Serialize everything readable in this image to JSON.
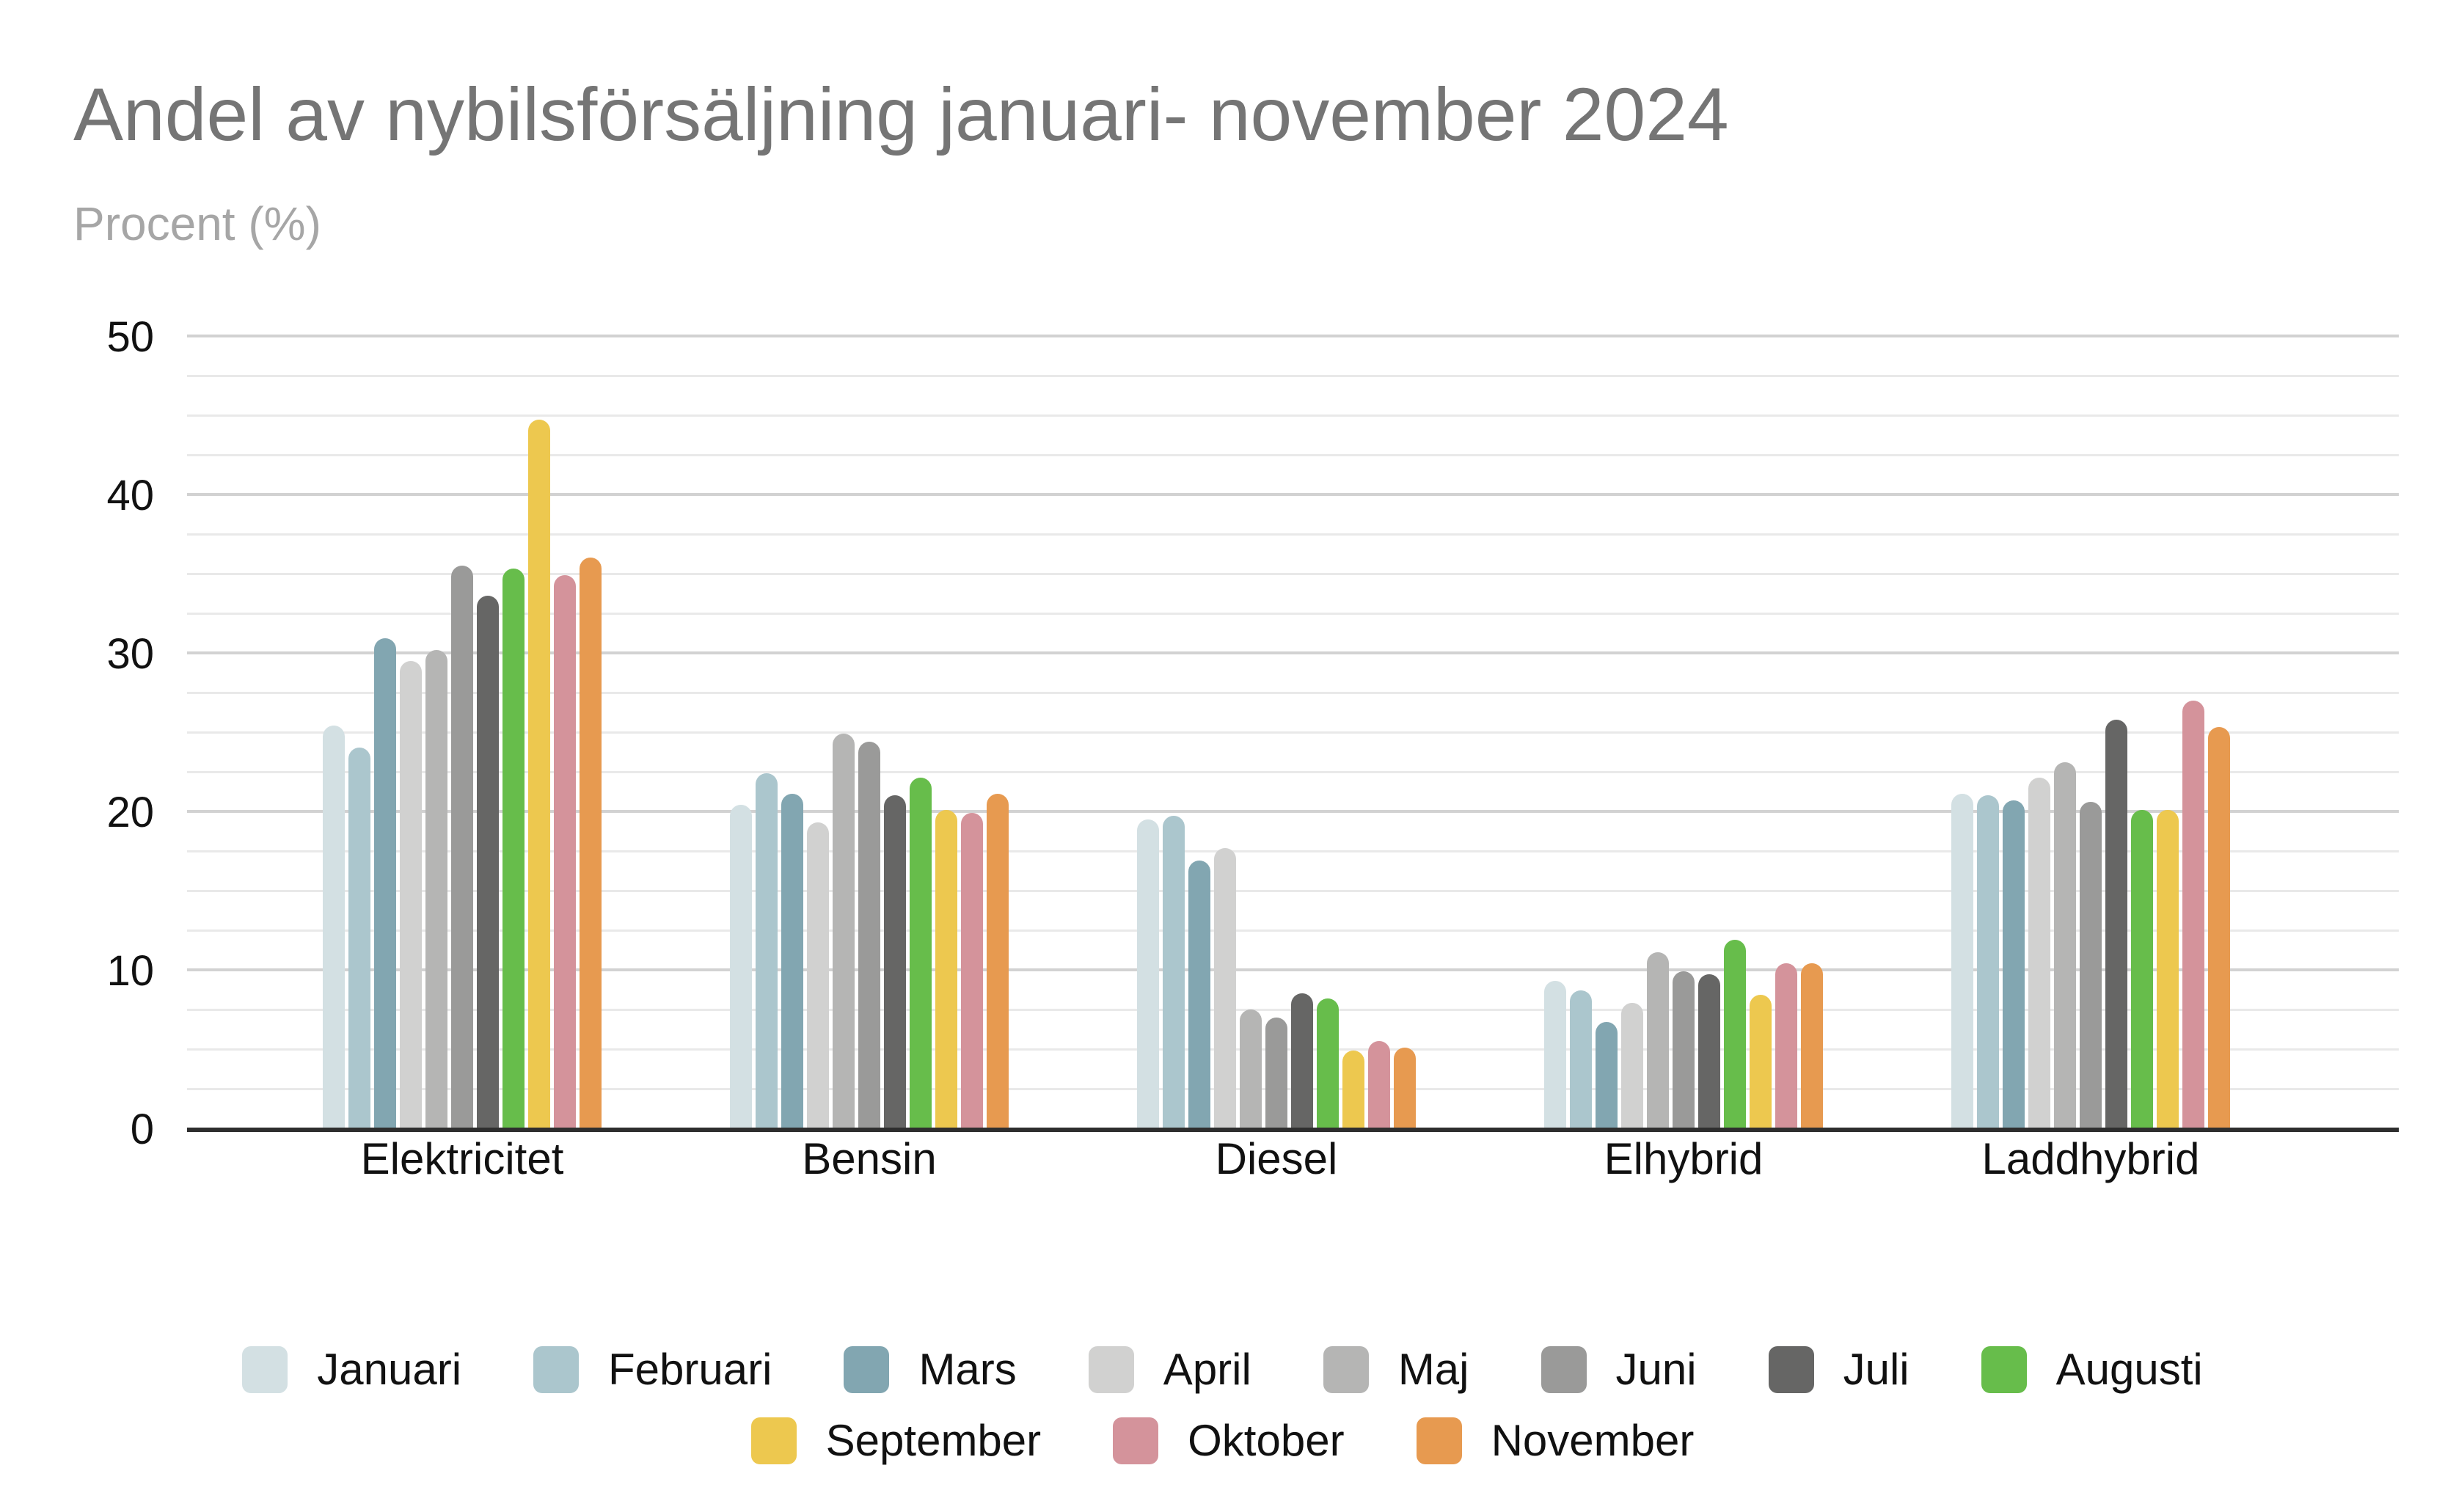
{
  "header": {
    "title": "Andel av nybilsförsäljning januari- november 2024",
    "subtitle": "Procent (%)"
  },
  "chart_data": {
    "type": "bar",
    "title": "Andel av nybilsförsäljning januari- november 2024",
    "ylabel": "Procent (%)",
    "xlabel": "",
    "ylim": [
      0,
      50
    ],
    "y_ticks": [
      0,
      10,
      20,
      30,
      40,
      50
    ],
    "minor_grid_step": 2.5,
    "grid": true,
    "legend_position": "bottom",
    "categories": [
      "Elektricitet",
      "Bensin",
      "Diesel",
      "Elhybrid",
      "Laddhybrid"
    ],
    "series": [
      {
        "name": "Januari",
        "color": "#d3e0e3",
        "values": [
          25.5,
          20.5,
          19.6,
          9.4,
          21.2
        ]
      },
      {
        "name": "Februari",
        "color": "#abc6cd",
        "values": [
          24.1,
          22.5,
          19.8,
          8.8,
          21.1
        ]
      },
      {
        "name": "Mars",
        "color": "#82a6b1",
        "values": [
          31.0,
          21.2,
          17.0,
          6.8,
          20.8
        ]
      },
      {
        "name": "April",
        "color": "#d1d1d0",
        "values": [
          29.6,
          19.4,
          17.8,
          8.0,
          22.2
        ]
      },
      {
        "name": "Maj",
        "color": "#b5b5b4",
        "values": [
          30.3,
          25.0,
          7.6,
          11.2,
          23.2
        ]
      },
      {
        "name": "Juni",
        "color": "#9a9a99",
        "values": [
          35.6,
          24.5,
          7.1,
          10.0,
          20.7
        ]
      },
      {
        "name": "Juli",
        "color": "#666665",
        "values": [
          33.7,
          21.1,
          8.6,
          9.8,
          25.9
        ]
      },
      {
        "name": "Augusti",
        "color": "#67bd4b",
        "values": [
          35.4,
          22.2,
          8.3,
          12.0,
          20.2
        ]
      },
      {
        "name": "September",
        "color": "#edc84f",
        "values": [
          44.8,
          20.2,
          5.0,
          8.5,
          20.2
        ]
      },
      {
        "name": "Oktober",
        "color": "#d4939b",
        "values": [
          35.0,
          20.0,
          5.6,
          10.5,
          27.1
        ]
      },
      {
        "name": "November",
        "color": "#e79a50",
        "values": [
          36.1,
          21.2,
          5.2,
          10.5,
          25.4
        ]
      }
    ],
    "legend_rows": [
      [
        "Januari",
        "Februari",
        "Mars",
        "April",
        "Maj",
        "Juni",
        "Juli",
        "Augusti"
      ],
      [
        "September",
        "Oktober",
        "November"
      ]
    ]
  },
  "style_colors": {
    "title_text": "#757575",
    "subtitle_text": "#a6a6a6",
    "axis_line": "#2e2e2e",
    "minor_gridline": "#e9e9e9",
    "major_gridline": "#d2d2d2",
    "tick_text": "#111111"
  }
}
